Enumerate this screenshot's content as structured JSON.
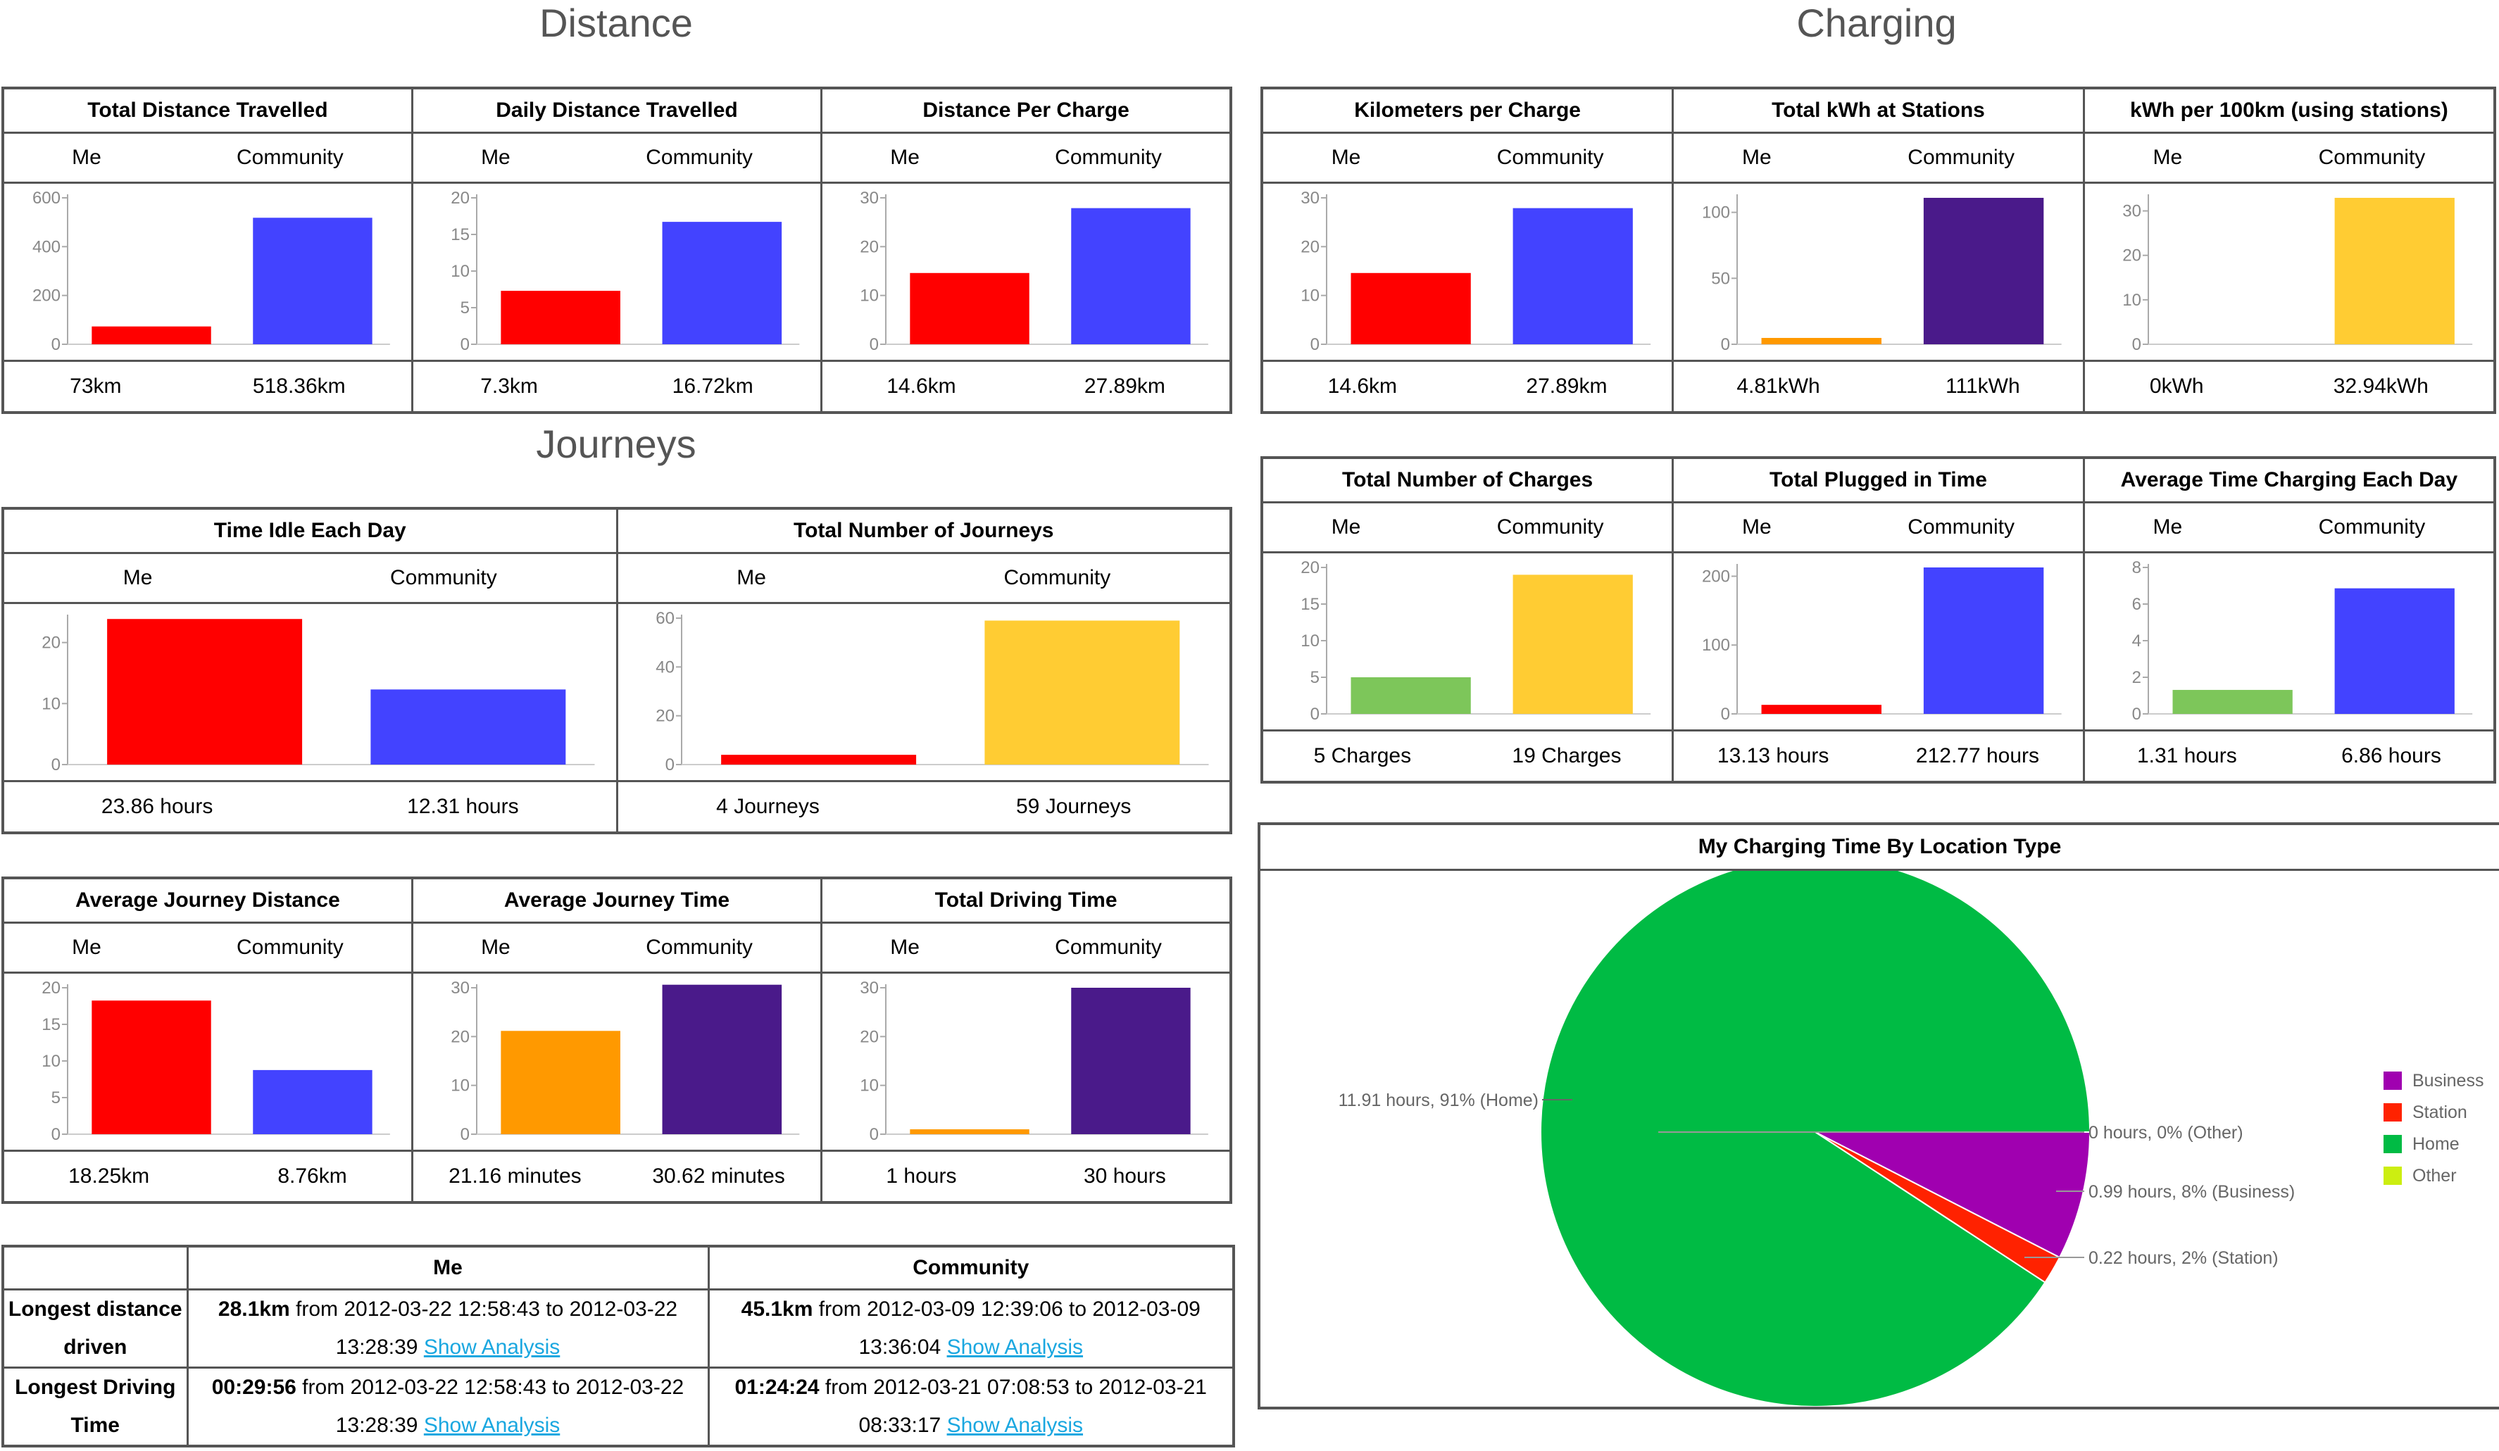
{
  "headings": {
    "distance": "Distance",
    "journeys": "Journeys",
    "charging": "Charging"
  },
  "sub_labels": {
    "me": "Me",
    "community": "Community"
  },
  "colors": {
    "red": "#ff0000",
    "blue": "#4343ff",
    "purple": "#4a1a8a",
    "orange": "#ff9900",
    "yellow": "#ffcc33",
    "green": "#7dc65a",
    "pie_home": "#00bb44",
    "pie_business": "#a000b0",
    "pie_station": "#ff2200",
    "pie_other": "#ccee11"
  },
  "panels": {
    "total_distance": {
      "title": "Total Distance Travelled",
      "me_value": "73km",
      "community_value": "518.36km"
    },
    "daily_distance": {
      "title": "Daily Distance Travelled",
      "me_value": "7.3km",
      "community_value": "16.72km"
    },
    "distance_per_charge": {
      "title": "Distance Per Charge",
      "me_value": "14.6km",
      "community_value": "27.89km"
    },
    "time_idle": {
      "title": "Time Idle Each Day",
      "me_value": "23.86 hours",
      "community_value": "12.31 hours"
    },
    "total_journeys": {
      "title": "Total Number of Journeys",
      "me_value": "4 Journeys",
      "community_value": "59 Journeys"
    },
    "avg_journey_distance": {
      "title": "Average Journey Distance",
      "me_value": "18.25km",
      "community_value": "8.76km"
    },
    "avg_journey_time": {
      "title": "Average Journey Time",
      "me_value": "21.16 minutes",
      "community_value": "30.62 minutes"
    },
    "total_driving_time": {
      "title": "Total Driving Time",
      "me_value": "1 hours",
      "community_value": "30 hours"
    },
    "km_per_charge": {
      "title": "Kilometers per Charge",
      "me_value": "14.6km",
      "community_value": "27.89km"
    },
    "total_kwh": {
      "title": "Total kWh at Stations",
      "me_value": "4.81kWh",
      "community_value": "111kWh"
    },
    "kwh_per_100": {
      "title": "kWh per 100km (using stations)",
      "me_value": "0kWh",
      "community_value": "32.94kWh"
    },
    "total_charges": {
      "title": "Total Number of Charges",
      "me_value": "5 Charges",
      "community_value": "19 Charges"
    },
    "total_plugged": {
      "title": "Total Plugged in Time",
      "me_value": "13.13 hours",
      "community_value": "212.77 hours"
    },
    "avg_charging_time": {
      "title": "Average Time Charging Each Day",
      "me_value": "1.31 hours",
      "community_value": "6.86 hours"
    }
  },
  "longest": {
    "head_me": "Me",
    "head_community": "Community",
    "row1_label": "Longest distance driven",
    "row1_me_bold": "28.1km",
    "row1_me_text": " from 2012-03-22 12:58:43 to 2012-03-22 13:28:39 ",
    "row1_community_bold": "45.1km",
    "row1_community_text": " from 2012-03-09 12:39:06 to 2012-03-09 13:36:04 ",
    "row2_label": "Longest Driving Time",
    "row2_me_bold": "00:29:56",
    "row2_me_text": " from 2012-03-22 12:58:43 to 2012-03-22 13:28:39 ",
    "row2_community_bold": "01:24:24",
    "row2_community_text": " from 2012-03-21 07:08:53 to 2012-03-21 08:33:17 ",
    "link_text": "Show Analysis"
  },
  "pie": {
    "title": "My Charging Time By Location Type",
    "label_home": "11.91 hours, 91% (Home)",
    "label_other": "0 hours, 0% (Other)",
    "label_business": "0.99 hours, 8% (Business)",
    "label_station": "0.22 hours, 2% (Station)",
    "legend": [
      "Business",
      "Station",
      "Home",
      "Other"
    ]
  },
  "chart_data": [
    {
      "id": "total_distance",
      "type": "bar",
      "categories": [
        "Me",
        "Community"
      ],
      "values": [
        73,
        518.36
      ],
      "ylim": [
        0,
        600
      ],
      "ticks": [
        0,
        200,
        400,
        600
      ],
      "colors": [
        "#ff0000",
        "#4343ff"
      ]
    },
    {
      "id": "daily_distance",
      "type": "bar",
      "categories": [
        "Me",
        "Community"
      ],
      "values": [
        7.3,
        16.72
      ],
      "ylim": [
        0,
        20
      ],
      "ticks": [
        0,
        5,
        10,
        15,
        20
      ],
      "colors": [
        "#ff0000",
        "#4343ff"
      ]
    },
    {
      "id": "distance_per_charge",
      "type": "bar",
      "categories": [
        "Me",
        "Community"
      ],
      "values": [
        14.6,
        27.89
      ],
      "ylim": [
        0,
        30
      ],
      "ticks": [
        0,
        10,
        20,
        30
      ],
      "colors": [
        "#ff0000",
        "#4343ff"
      ]
    },
    {
      "id": "time_idle",
      "type": "bar",
      "categories": [
        "Me",
        "Community"
      ],
      "values": [
        23.86,
        12.31
      ],
      "ylim": [
        0,
        24
      ],
      "ticks": [
        0,
        10,
        20
      ],
      "colors": [
        "#ff0000",
        "#4343ff"
      ]
    },
    {
      "id": "total_journeys",
      "type": "bar",
      "categories": [
        "Me",
        "Community"
      ],
      "values": [
        4,
        59
      ],
      "ylim": [
        0,
        60
      ],
      "ticks": [
        0,
        20,
        40,
        60
      ],
      "colors": [
        "#ff0000",
        "#ffcc33"
      ]
    },
    {
      "id": "avg_journey_distance",
      "type": "bar",
      "categories": [
        "Me",
        "Community"
      ],
      "values": [
        18.25,
        8.76
      ],
      "ylim": [
        0,
        20
      ],
      "ticks": [
        0,
        5,
        10,
        15,
        20
      ],
      "colors": [
        "#ff0000",
        "#4343ff"
      ]
    },
    {
      "id": "avg_journey_time",
      "type": "bar",
      "categories": [
        "Me",
        "Community"
      ],
      "values": [
        21.16,
        30.62
      ],
      "ylim": [
        0,
        30
      ],
      "ticks": [
        0,
        10,
        20,
        30
      ],
      "colors": [
        "#ff9900",
        "#4a1a8a"
      ]
    },
    {
      "id": "total_driving_time",
      "type": "bar",
      "categories": [
        "Me",
        "Community"
      ],
      "values": [
        1,
        30
      ],
      "ylim": [
        0,
        30
      ],
      "ticks": [
        0,
        10,
        20,
        30
      ],
      "colors": [
        "#ff9900",
        "#4a1a8a"
      ]
    },
    {
      "id": "km_per_charge",
      "type": "bar",
      "categories": [
        "Me",
        "Community"
      ],
      "values": [
        14.6,
        27.89
      ],
      "ylim": [
        0,
        30
      ],
      "ticks": [
        0,
        10,
        20,
        30
      ],
      "colors": [
        "#ff0000",
        "#4343ff"
      ]
    },
    {
      "id": "total_kwh",
      "type": "bar",
      "categories": [
        "Me",
        "Community"
      ],
      "values": [
        4.81,
        111
      ],
      "ylim": [
        0,
        111
      ],
      "ticks": [
        0,
        50,
        100
      ],
      "colors": [
        "#ff9900",
        "#4a1a8a"
      ]
    },
    {
      "id": "kwh_per_100",
      "type": "bar",
      "categories": [
        "Me",
        "Community"
      ],
      "values": [
        0,
        32.94
      ],
      "ylim": [
        0,
        32.94
      ],
      "ticks": [
        0,
        10,
        20,
        30
      ],
      "colors": [
        "#ff9900",
        "#ffcc33"
      ]
    },
    {
      "id": "total_charges",
      "type": "bar",
      "categories": [
        "Me",
        "Community"
      ],
      "values": [
        5,
        19
      ],
      "ylim": [
        0,
        20
      ],
      "ticks": [
        0,
        5,
        10,
        15,
        20
      ],
      "colors": [
        "#7dc65a",
        "#ffcc33"
      ]
    },
    {
      "id": "total_plugged",
      "type": "bar",
      "categories": [
        "Me",
        "Community"
      ],
      "values": [
        13.13,
        212.77
      ],
      "ylim": [
        0,
        212.77
      ],
      "ticks": [
        0,
        100,
        200
      ],
      "colors": [
        "#ff0000",
        "#4343ff"
      ]
    },
    {
      "id": "avg_charging_time",
      "type": "bar",
      "categories": [
        "Me",
        "Community"
      ],
      "values": [
        1.31,
        6.86
      ],
      "ylim": [
        0,
        8
      ],
      "ticks": [
        0,
        2,
        4,
        6,
        8
      ],
      "colors": [
        "#7dc65a",
        "#4343ff"
      ]
    },
    {
      "id": "charging_by_location",
      "type": "pie",
      "categories": [
        "Home",
        "Business",
        "Station",
        "Other"
      ],
      "values": [
        11.91,
        0.99,
        0.22,
        0
      ],
      "percent": [
        91,
        8,
        2,
        0
      ]
    }
  ]
}
